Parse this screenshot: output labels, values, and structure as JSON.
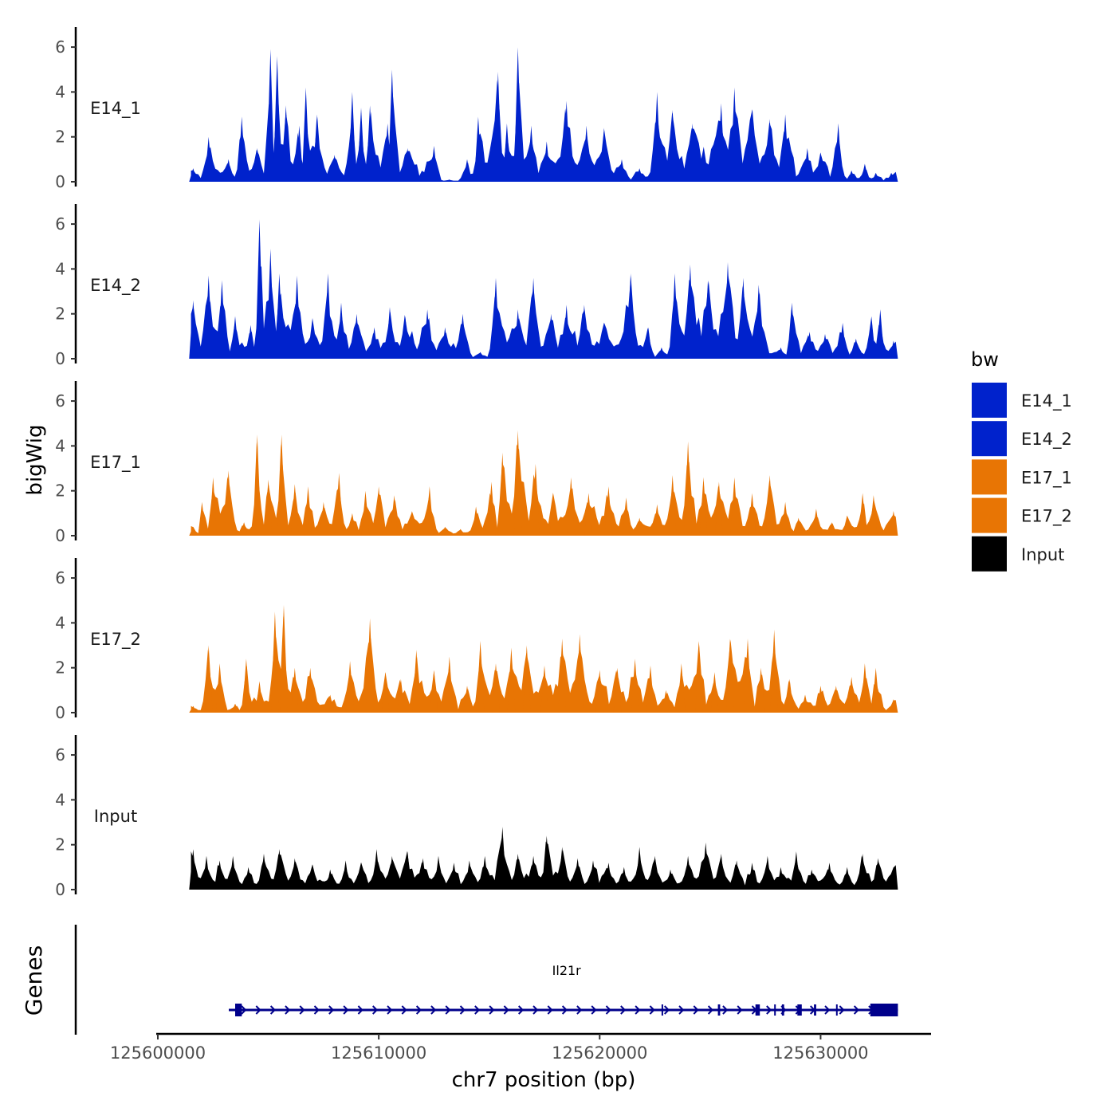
{
  "chart_data": {
    "type": "area",
    "ylabel": "bigWig",
    "genes_label": "Genes",
    "xlabel": "chr7 position (bp)",
    "x_ticks": [
      125600000,
      125610000,
      125620000,
      125630000
    ],
    "x_tick_labels": [
      "125600000",
      "125610000",
      "125620000",
      "125630000"
    ],
    "xlim": [
      125600000,
      125635000
    ],
    "data_range": [
      125601500,
      125633500
    ],
    "ylim": [
      0,
      6.5
    ],
    "y_ticks": [
      0,
      2,
      4,
      6
    ],
    "y_tick_labels": [
      "0",
      "2",
      "4",
      "6"
    ],
    "legend": {
      "title": "bw",
      "position": "right",
      "items": [
        {
          "label": "E14_1",
          "color": "#0022CC"
        },
        {
          "label": "E14_2",
          "color": "#0022CC"
        },
        {
          "label": "E17_1",
          "color": "#E87504"
        },
        {
          "label": "E17_2",
          "color": "#E87504"
        },
        {
          "label": "Input",
          "color": "#000000"
        }
      ]
    },
    "series": [
      {
        "name": "E14_1",
        "color": "#0022CC",
        "peaks": [
          [
            125601600,
            0.6
          ],
          [
            125602300,
            2.0
          ],
          [
            125603200,
            1.0
          ],
          [
            125603800,
            2.9
          ],
          [
            125604500,
            1.5
          ],
          [
            125605100,
            5.9
          ],
          [
            125605400,
            5.6
          ],
          [
            125605800,
            3.4
          ],
          [
            125606400,
            2.5
          ],
          [
            125606700,
            4.2
          ],
          [
            125607200,
            3.0
          ],
          [
            125608000,
            1.2
          ],
          [
            125608800,
            4.0
          ],
          [
            125609200,
            3.3
          ],
          [
            125609600,
            3.4
          ],
          [
            125610400,
            2.6
          ],
          [
            125610600,
            5.0
          ],
          [
            125611300,
            1.5
          ],
          [
            125612500,
            1.6
          ],
          [
            125613200,
            0.1
          ],
          [
            125614000,
            1.0
          ],
          [
            125614500,
            2.9
          ],
          [
            125615400,
            4.9
          ],
          [
            125615800,
            2.6
          ],
          [
            125616300,
            6.0
          ],
          [
            125616900,
            2.5
          ],
          [
            125617600,
            1.8
          ],
          [
            125618500,
            3.6
          ],
          [
            125619400,
            2.5
          ],
          [
            125620200,
            2.4
          ],
          [
            125621000,
            1.0
          ],
          [
            125621800,
            0.6
          ],
          [
            125622600,
            4.0
          ],
          [
            125623300,
            3.2
          ],
          [
            125624200,
            2.6
          ],
          [
            125625500,
            3.5
          ],
          [
            125626100,
            4.2
          ],
          [
            125626900,
            3.2
          ],
          [
            125627700,
            2.8
          ],
          [
            125628400,
            3.0
          ],
          [
            125629400,
            1.5
          ],
          [
            125630000,
            1.3
          ],
          [
            125630800,
            2.6
          ],
          [
            125631400,
            0.5
          ],
          [
            125632000,
            0.8
          ],
          [
            125632500,
            0.4
          ],
          [
            125633200,
            0.4
          ]
        ]
      },
      {
        "name": "E14_2",
        "color": "#0022CC",
        "peaks": [
          [
            125601600,
            2.6
          ],
          [
            125602300,
            3.7
          ],
          [
            125602900,
            3.5
          ],
          [
            125603500,
            1.9
          ],
          [
            125604200,
            1.5
          ],
          [
            125604600,
            6.2
          ],
          [
            125605100,
            4.9
          ],
          [
            125605500,
            3.8
          ],
          [
            125606300,
            3.7
          ],
          [
            125607000,
            1.7
          ],
          [
            125607700,
            3.8
          ],
          [
            125608300,
            2.5
          ],
          [
            125609000,
            2.0
          ],
          [
            125609800,
            1.4
          ],
          [
            125610500,
            2.3
          ],
          [
            125611200,
            1.9
          ],
          [
            125612200,
            2.2
          ],
          [
            125613000,
            1.4
          ],
          [
            125613800,
            2.0
          ],
          [
            125614600,
            0.3
          ],
          [
            125615300,
            3.6
          ],
          [
            125616300,
            2.2
          ],
          [
            125617000,
            3.6
          ],
          [
            125617800,
            2.0
          ],
          [
            125618500,
            2.4
          ],
          [
            125619300,
            2.4
          ],
          [
            125620200,
            1.5
          ],
          [
            125621400,
            3.8
          ],
          [
            125622200,
            1.4
          ],
          [
            125622800,
            0.5
          ],
          [
            125623400,
            3.8
          ],
          [
            125624100,
            4.2
          ],
          [
            125624900,
            3.5
          ],
          [
            125625800,
            4.3
          ],
          [
            125626500,
            3.6
          ],
          [
            125627200,
            3.3
          ],
          [
            125628200,
            0.5
          ],
          [
            125628700,
            2.5
          ],
          [
            125629500,
            1.2
          ],
          [
            125630200,
            1.1
          ],
          [
            125631000,
            1.6
          ],
          [
            125631600,
            0.9
          ],
          [
            125632300,
            1.8
          ],
          [
            125632700,
            2.2
          ],
          [
            125633300,
            0.8
          ]
        ]
      },
      {
        "name": "E17_1",
        "color": "#E87504",
        "peaks": [
          [
            125601600,
            0.4
          ],
          [
            125602000,
            1.5
          ],
          [
            125602500,
            2.6
          ],
          [
            125603200,
            2.9
          ],
          [
            125603900,
            0.6
          ],
          [
            125604500,
            4.5
          ],
          [
            125605000,
            2.5
          ],
          [
            125605600,
            4.5
          ],
          [
            125606200,
            2.3
          ],
          [
            125606800,
            2.2
          ],
          [
            125607500,
            1.5
          ],
          [
            125608200,
            2.8
          ],
          [
            125608800,
            1.0
          ],
          [
            125609400,
            2.0
          ],
          [
            125610000,
            2.2
          ],
          [
            125610700,
            1.8
          ],
          [
            125611500,
            1.1
          ],
          [
            125612300,
            2.2
          ],
          [
            125613000,
            0.4
          ],
          [
            125613700,
            0.3
          ],
          [
            125614400,
            1.3
          ],
          [
            125615100,
            2.4
          ],
          [
            125615600,
            3.7
          ],
          [
            125616300,
            4.7
          ],
          [
            125617100,
            3.2
          ],
          [
            125617900,
            1.8
          ],
          [
            125618700,
            2.6
          ],
          [
            125619500,
            1.9
          ],
          [
            125620400,
            2.2
          ],
          [
            125621200,
            1.7
          ],
          [
            125621800,
            0.8
          ],
          [
            125622600,
            1.4
          ],
          [
            125623300,
            2.7
          ],
          [
            125624000,
            4.2
          ],
          [
            125624700,
            2.6
          ],
          [
            125625400,
            2.4
          ],
          [
            125626100,
            2.6
          ],
          [
            125626900,
            1.9
          ],
          [
            125627700,
            2.7
          ],
          [
            125628400,
            1.5
          ],
          [
            125629000,
            0.8
          ],
          [
            125629800,
            1.2
          ],
          [
            125630500,
            0.6
          ],
          [
            125631200,
            0.9
          ],
          [
            125631900,
            1.9
          ],
          [
            125632400,
            1.8
          ],
          [
            125633300,
            1.1
          ]
        ]
      },
      {
        "name": "E17_2",
        "color": "#E87504",
        "peaks": [
          [
            125601600,
            0.3
          ],
          [
            125602300,
            3.0
          ],
          [
            125602800,
            2.2
          ],
          [
            125603500,
            0.4
          ],
          [
            125604000,
            2.4
          ],
          [
            125604600,
            1.4
          ],
          [
            125605300,
            4.5
          ],
          [
            125605700,
            4.8
          ],
          [
            125606200,
            2.0
          ],
          [
            125606900,
            2.0
          ],
          [
            125607800,
            0.8
          ],
          [
            125608700,
            2.3
          ],
          [
            125609600,
            4.2
          ],
          [
            125610300,
            1.8
          ],
          [
            125611000,
            1.5
          ],
          [
            125611700,
            2.8
          ],
          [
            125612500,
            1.9
          ],
          [
            125613200,
            2.5
          ],
          [
            125614000,
            1.2
          ],
          [
            125614600,
            3.2
          ],
          [
            125615300,
            2.2
          ],
          [
            125616000,
            2.9
          ],
          [
            125616700,
            3.0
          ],
          [
            125617500,
            2.1
          ],
          [
            125618300,
            3.3
          ],
          [
            125619100,
            3.5
          ],
          [
            125620000,
            1.9
          ],
          [
            125620800,
            2.0
          ],
          [
            125621600,
            2.4
          ],
          [
            125622300,
            2.1
          ],
          [
            125623000,
            1.0
          ],
          [
            125623700,
            2.2
          ],
          [
            125624500,
            3.0
          ],
          [
            125625200,
            1.8
          ],
          [
            125625900,
            3.3
          ],
          [
            125626700,
            3.3
          ],
          [
            125627300,
            2.0
          ],
          [
            125627900,
            3.7
          ],
          [
            125628600,
            1.5
          ],
          [
            125629300,
            0.8
          ],
          [
            125630000,
            1.2
          ],
          [
            125630700,
            1.2
          ],
          [
            125631400,
            1.6
          ],
          [
            125632000,
            2.2
          ],
          [
            125632500,
            2.0
          ],
          [
            125633300,
            0.6
          ]
        ]
      },
      {
        "name": "Input",
        "color": "#000000",
        "peaks": [
          [
            125601600,
            1.8
          ],
          [
            125602200,
            1.5
          ],
          [
            125602800,
            1.3
          ],
          [
            125603400,
            1.5
          ],
          [
            125604100,
            1.0
          ],
          [
            125604800,
            1.6
          ],
          [
            125605500,
            1.8
          ],
          [
            125606200,
            1.4
          ],
          [
            125607000,
            1.1
          ],
          [
            125607800,
            0.9
          ],
          [
            125608500,
            1.3
          ],
          [
            125609200,
            1.2
          ],
          [
            125609900,
            1.8
          ],
          [
            125610600,
            1.5
          ],
          [
            125611300,
            1.7
          ],
          [
            125612000,
            1.4
          ],
          [
            125612700,
            1.5
          ],
          [
            125613400,
            1.2
          ],
          [
            125614100,
            1.3
          ],
          [
            125614800,
            1.5
          ],
          [
            125615600,
            2.8
          ],
          [
            125616300,
            1.6
          ],
          [
            125617000,
            1.5
          ],
          [
            125617600,
            2.4
          ],
          [
            125618300,
            1.9
          ],
          [
            125619000,
            1.4
          ],
          [
            125619700,
            1.3
          ],
          [
            125620400,
            1.2
          ],
          [
            125621100,
            1.0
          ],
          [
            125621800,
            1.9
          ],
          [
            125622500,
            1.5
          ],
          [
            125623200,
            0.9
          ],
          [
            125624000,
            1.5
          ],
          [
            125624800,
            2.1
          ],
          [
            125625500,
            1.6
          ],
          [
            125626200,
            1.3
          ],
          [
            125626900,
            1.2
          ],
          [
            125627600,
            1.5
          ],
          [
            125628200,
            1.0
          ],
          [
            125628900,
            1.7
          ],
          [
            125629600,
            0.9
          ],
          [
            125630400,
            1.2
          ],
          [
            125631200,
            1.0
          ],
          [
            125631900,
            1.6
          ],
          [
            125632600,
            1.4
          ],
          [
            125633300,
            1.0
          ]
        ]
      }
    ],
    "gene_track": {
      "gene": "Il21r",
      "color": "#00008B",
      "start": 125603500,
      "end": 125633500,
      "strand": "+",
      "exons": [
        [
          125603500,
          125603800
        ],
        [
          125622800,
          125622850
        ],
        [
          125625350,
          125625450
        ],
        [
          125627050,
          125627250
        ],
        [
          125627900,
          125627950
        ],
        [
          125628250,
          125628350
        ],
        [
          125628950,
          125629150
        ],
        [
          125629700,
          125629800
        ],
        [
          125630700,
          125630750
        ],
        [
          125632250,
          125633500
        ]
      ]
    }
  }
}
